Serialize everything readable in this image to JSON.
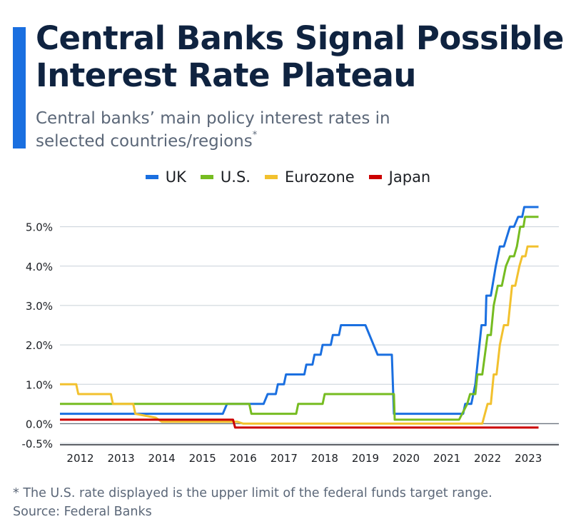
{
  "header": {
    "title": "Central Banks Signal Possible Interest Rate Plateau",
    "subtitle": "Central banks’ main policy interest rates in selected countries/regions",
    "subtitle_marker": "*"
  },
  "footer": {
    "note": "* The U.S. rate displayed is the upper limit of the federal funds target range.",
    "source": "Source: Federal Banks"
  },
  "colors": {
    "accent": "#1a6fe0",
    "title": "#0f2340",
    "uk": "#1a6fe0",
    "us": "#76bc21",
    "eurozone": "#f2c12e",
    "japan": "#cc0000",
    "grid": "#c8d0d8"
  },
  "chart_data": {
    "type": "line",
    "step": true,
    "legend_position": "top-center",
    "grid": true,
    "xlim": [
      2011.5,
      2023.75
    ],
    "ylim": [
      -0.5,
      5.5
    ],
    "y_ticks": [
      -0.5,
      0,
      1,
      2,
      3,
      4,
      5
    ],
    "y_tick_labels": [
      "-0.5%",
      "0.0%",
      "1.0%",
      "2.0%",
      "3.0%",
      "4.0%",
      "5.0%"
    ],
    "x_ticks": [
      2012,
      2013,
      2014,
      2015,
      2016,
      2017,
      2018,
      2019,
      2020,
      2021,
      2022,
      2023
    ],
    "x_tick_labels": [
      "2012",
      "2013",
      "2014",
      "2015",
      "2016",
      "2017",
      "2018",
      "2019",
      "2020",
      "2021",
      "2022",
      "2023"
    ],
    "series": [
      {
        "name": "UK",
        "color": "#1a6fe0",
        "points": [
          [
            2011.5,
            0.25
          ],
          [
            2015.5,
            0.25
          ],
          [
            2015.6,
            0.5
          ],
          [
            2016.5,
            0.5
          ],
          [
            2016.6,
            0.75
          ],
          [
            2016.8,
            0.75
          ],
          [
            2016.85,
            1.0
          ],
          [
            2017.0,
            1.0
          ],
          [
            2017.05,
            1.25
          ],
          [
            2017.5,
            1.25
          ],
          [
            2017.55,
            1.5
          ],
          [
            2017.7,
            1.5
          ],
          [
            2017.75,
            1.75
          ],
          [
            2017.9,
            1.75
          ],
          [
            2017.95,
            2.0
          ],
          [
            2018.15,
            2.0
          ],
          [
            2018.2,
            2.25
          ],
          [
            2018.35,
            2.25
          ],
          [
            2018.4,
            2.5
          ],
          [
            2019.0,
            2.5
          ],
          [
            2019.3,
            1.75
          ],
          [
            2019.65,
            1.75
          ],
          [
            2019.7,
            0.25
          ],
          [
            2021.4,
            0.25
          ],
          [
            2021.45,
            0.5
          ],
          [
            2021.6,
            0.5
          ],
          [
            2021.7,
            1.0
          ],
          [
            2021.85,
            2.5
          ],
          [
            2021.95,
            2.5
          ],
          [
            2021.97,
            3.25
          ],
          [
            2022.08,
            3.25
          ],
          [
            2022.2,
            4.0
          ],
          [
            2022.3,
            4.5
          ],
          [
            2022.4,
            4.5
          ],
          [
            2022.55,
            5.0
          ],
          [
            2022.65,
            5.0
          ],
          [
            2022.75,
            5.25
          ],
          [
            2022.85,
            5.25
          ],
          [
            2022.9,
            5.5
          ],
          [
            2023.25,
            5.5
          ]
        ]
      },
      {
        "name": "U.S.",
        "color": "#76bc21",
        "points": [
          [
            2011.5,
            0.5
          ],
          [
            2015.6,
            0.5
          ],
          [
            2016.15,
            0.5
          ],
          [
            2016.2,
            0.25
          ],
          [
            2017.3,
            0.25
          ],
          [
            2017.35,
            0.5
          ],
          [
            2017.95,
            0.5
          ],
          [
            2018.0,
            0.75
          ],
          [
            2019.7,
            0.75
          ],
          [
            2019.72,
            0.1
          ],
          [
            2021.3,
            0.1
          ],
          [
            2021.5,
            0.5
          ],
          [
            2021.57,
            0.75
          ],
          [
            2021.7,
            0.75
          ],
          [
            2021.75,
            1.25
          ],
          [
            2021.87,
            1.25
          ],
          [
            2022.0,
            2.25
          ],
          [
            2022.08,
            2.25
          ],
          [
            2022.15,
            3.0
          ],
          [
            2022.25,
            3.5
          ],
          [
            2022.35,
            3.5
          ],
          [
            2022.45,
            4.0
          ],
          [
            2022.55,
            4.25
          ],
          [
            2022.65,
            4.25
          ],
          [
            2022.72,
            4.5
          ],
          [
            2022.8,
            5.0
          ],
          [
            2022.88,
            5.0
          ],
          [
            2022.92,
            5.25
          ],
          [
            2023.25,
            5.25
          ]
        ]
      },
      {
        "name": "Eurozone",
        "color": "#f2c12e",
        "points": [
          [
            2011.5,
            1.0
          ],
          [
            2011.9,
            1.0
          ],
          [
            2011.95,
            0.75
          ],
          [
            2012.75,
            0.75
          ],
          [
            2012.8,
            0.5
          ],
          [
            2013.3,
            0.5
          ],
          [
            2013.35,
            0.25
          ],
          [
            2013.85,
            0.15
          ],
          [
            2014.0,
            0.05
          ],
          [
            2015.85,
            0.05
          ],
          [
            2016.0,
            0.0
          ],
          [
            2021.87,
            0.0
          ],
          [
            2022.0,
            0.5
          ],
          [
            2022.08,
            0.5
          ],
          [
            2022.15,
            1.25
          ],
          [
            2022.22,
            1.25
          ],
          [
            2022.3,
            2.0
          ],
          [
            2022.4,
            2.5
          ],
          [
            2022.5,
            2.5
          ],
          [
            2022.6,
            3.5
          ],
          [
            2022.68,
            3.5
          ],
          [
            2022.78,
            4.0
          ],
          [
            2022.85,
            4.25
          ],
          [
            2022.93,
            4.25
          ],
          [
            2022.98,
            4.5
          ],
          [
            2023.25,
            4.5
          ]
        ]
      },
      {
        "name": "Japan",
        "color": "#cc0000",
        "points": [
          [
            2011.5,
            0.1
          ],
          [
            2015.75,
            0.1
          ],
          [
            2015.8,
            -0.1
          ],
          [
            2023.25,
            -0.1
          ]
        ]
      }
    ]
  }
}
